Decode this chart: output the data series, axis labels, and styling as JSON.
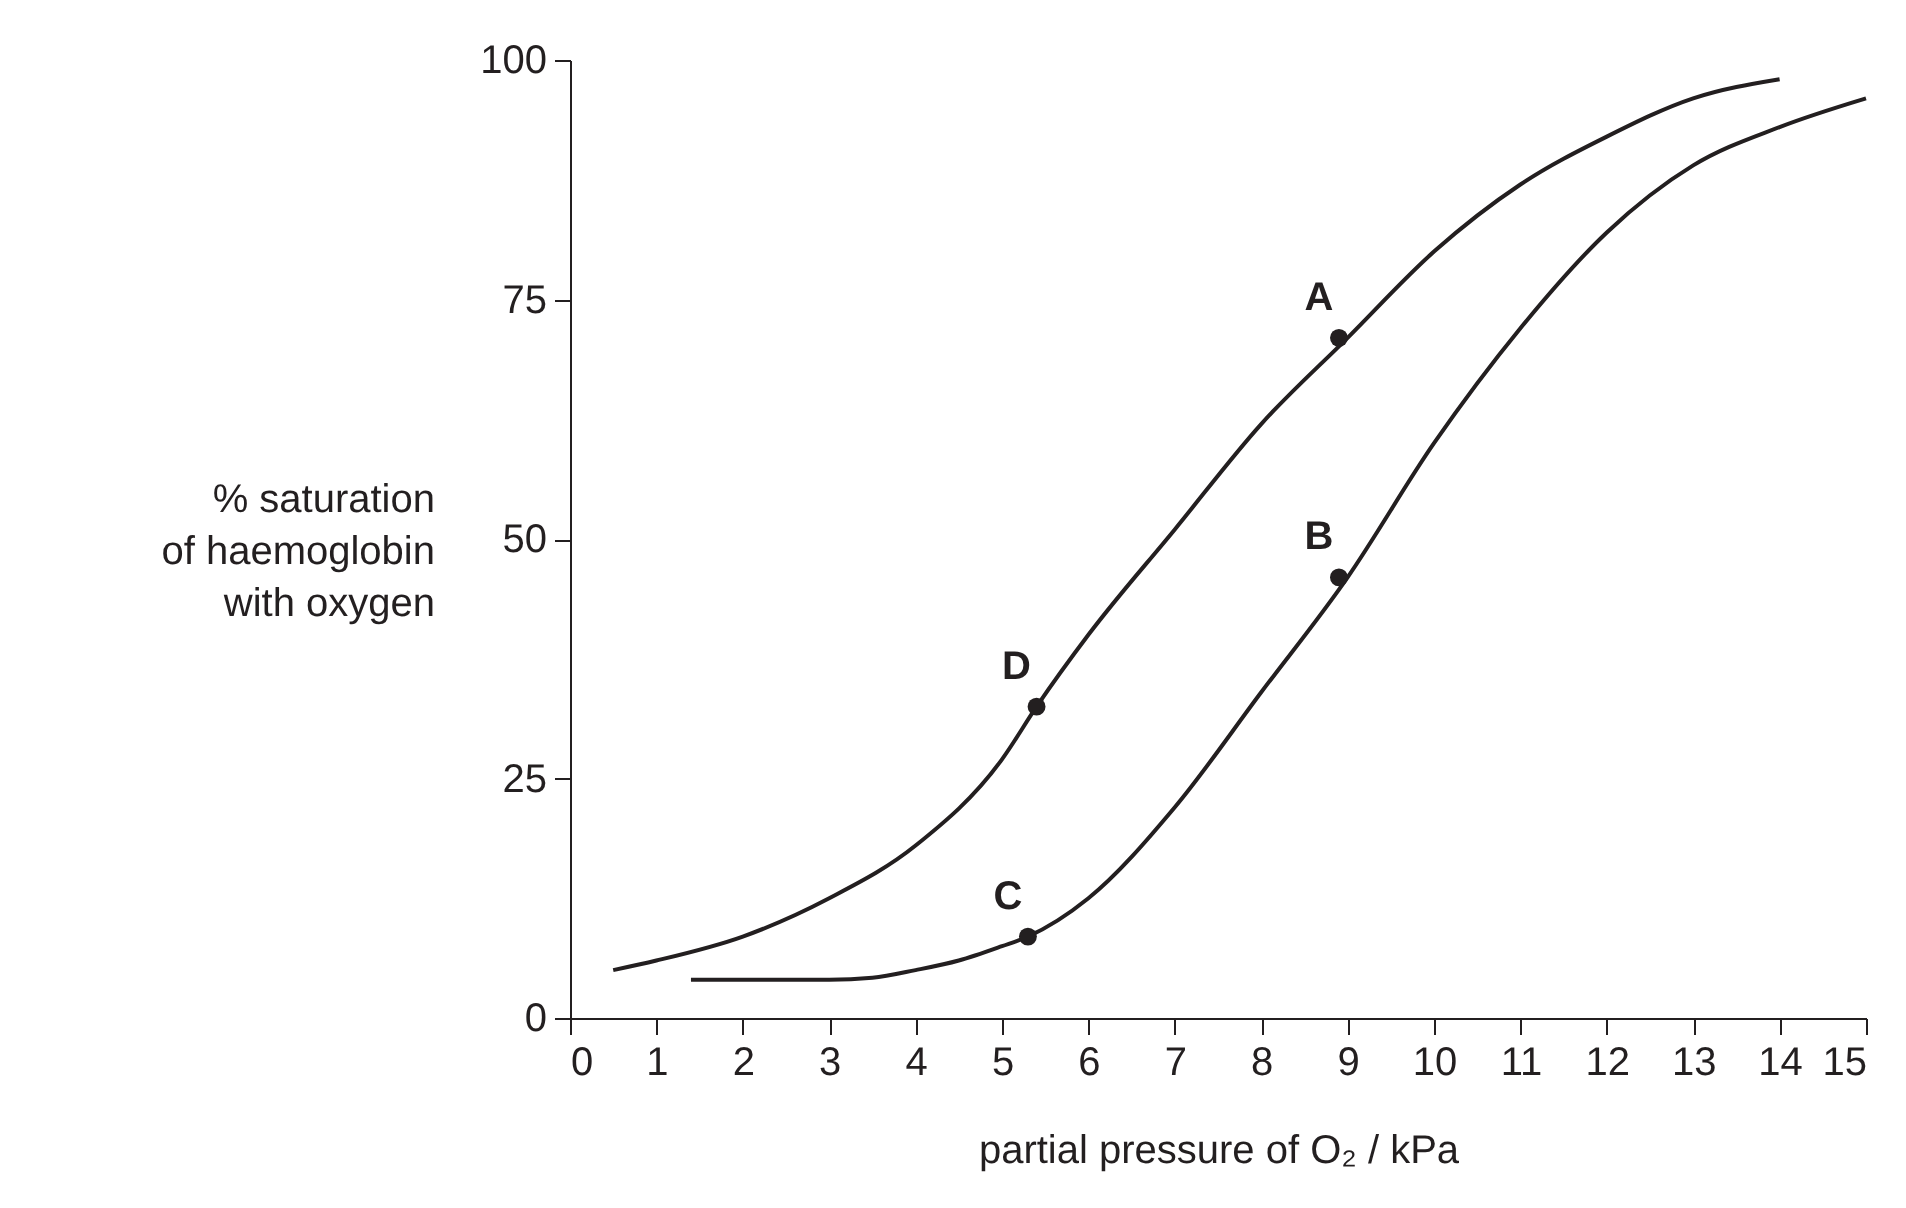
{
  "chart_data": {
    "type": "line",
    "xlabel": "partial pressure of O₂ / kPa",
    "ylabel": "% saturation\nof haemoglobin\nwith oxygen",
    "xlim": [
      0,
      15
    ],
    "ylim": [
      0,
      100
    ],
    "xticks": [
      0,
      1,
      2,
      3,
      4,
      5,
      6,
      7,
      8,
      9,
      10,
      11,
      12,
      13,
      14,
      15
    ],
    "yticks": [
      0,
      25,
      50,
      75,
      100
    ],
    "grid": false,
    "marker": "none",
    "line_style": "solid",
    "series": [
      {
        "color": "#231f20",
        "x": [
          0.5,
          1,
          2,
          3,
          4,
          5,
          5.4,
          6,
          7,
          8,
          9,
          10,
          11,
          12,
          13,
          14
        ],
        "values": [
          5,
          6,
          8.5,
          12.5,
          18,
          27,
          32.5,
          40,
          51,
          62,
          71,
          80,
          87,
          92,
          96,
          98
        ]
      },
      {
        "color": "#231f20",
        "x": [
          1.4,
          2,
          3,
          3.5,
          4,
          4.5,
          5,
          5.3,
          6,
          7,
          8,
          9,
          10,
          11,
          12,
          13,
          14,
          15
        ],
        "values": [
          4,
          4,
          4,
          4.2,
          5,
          6,
          7.5,
          8.5,
          12.5,
          22,
          34,
          46,
          60,
          72,
          82,
          89,
          93,
          96
        ]
      },
      {
        "type": "scatter",
        "color": "#231f20",
        "marker": "circle",
        "x": [
          8.9,
          8.9,
          5.3,
          5.4
        ],
        "values": [
          71,
          46,
          8.5,
          32.5
        ]
      }
    ],
    "annotations": [
      {
        "text": "A",
        "x": 8.9,
        "y": 71
      },
      {
        "text": "B",
        "x": 8.9,
        "y": 46
      },
      {
        "text": "C",
        "x": 5.3,
        "y": 8.5
      },
      {
        "text": "D",
        "x": 5.4,
        "y": 32.5
      }
    ]
  }
}
